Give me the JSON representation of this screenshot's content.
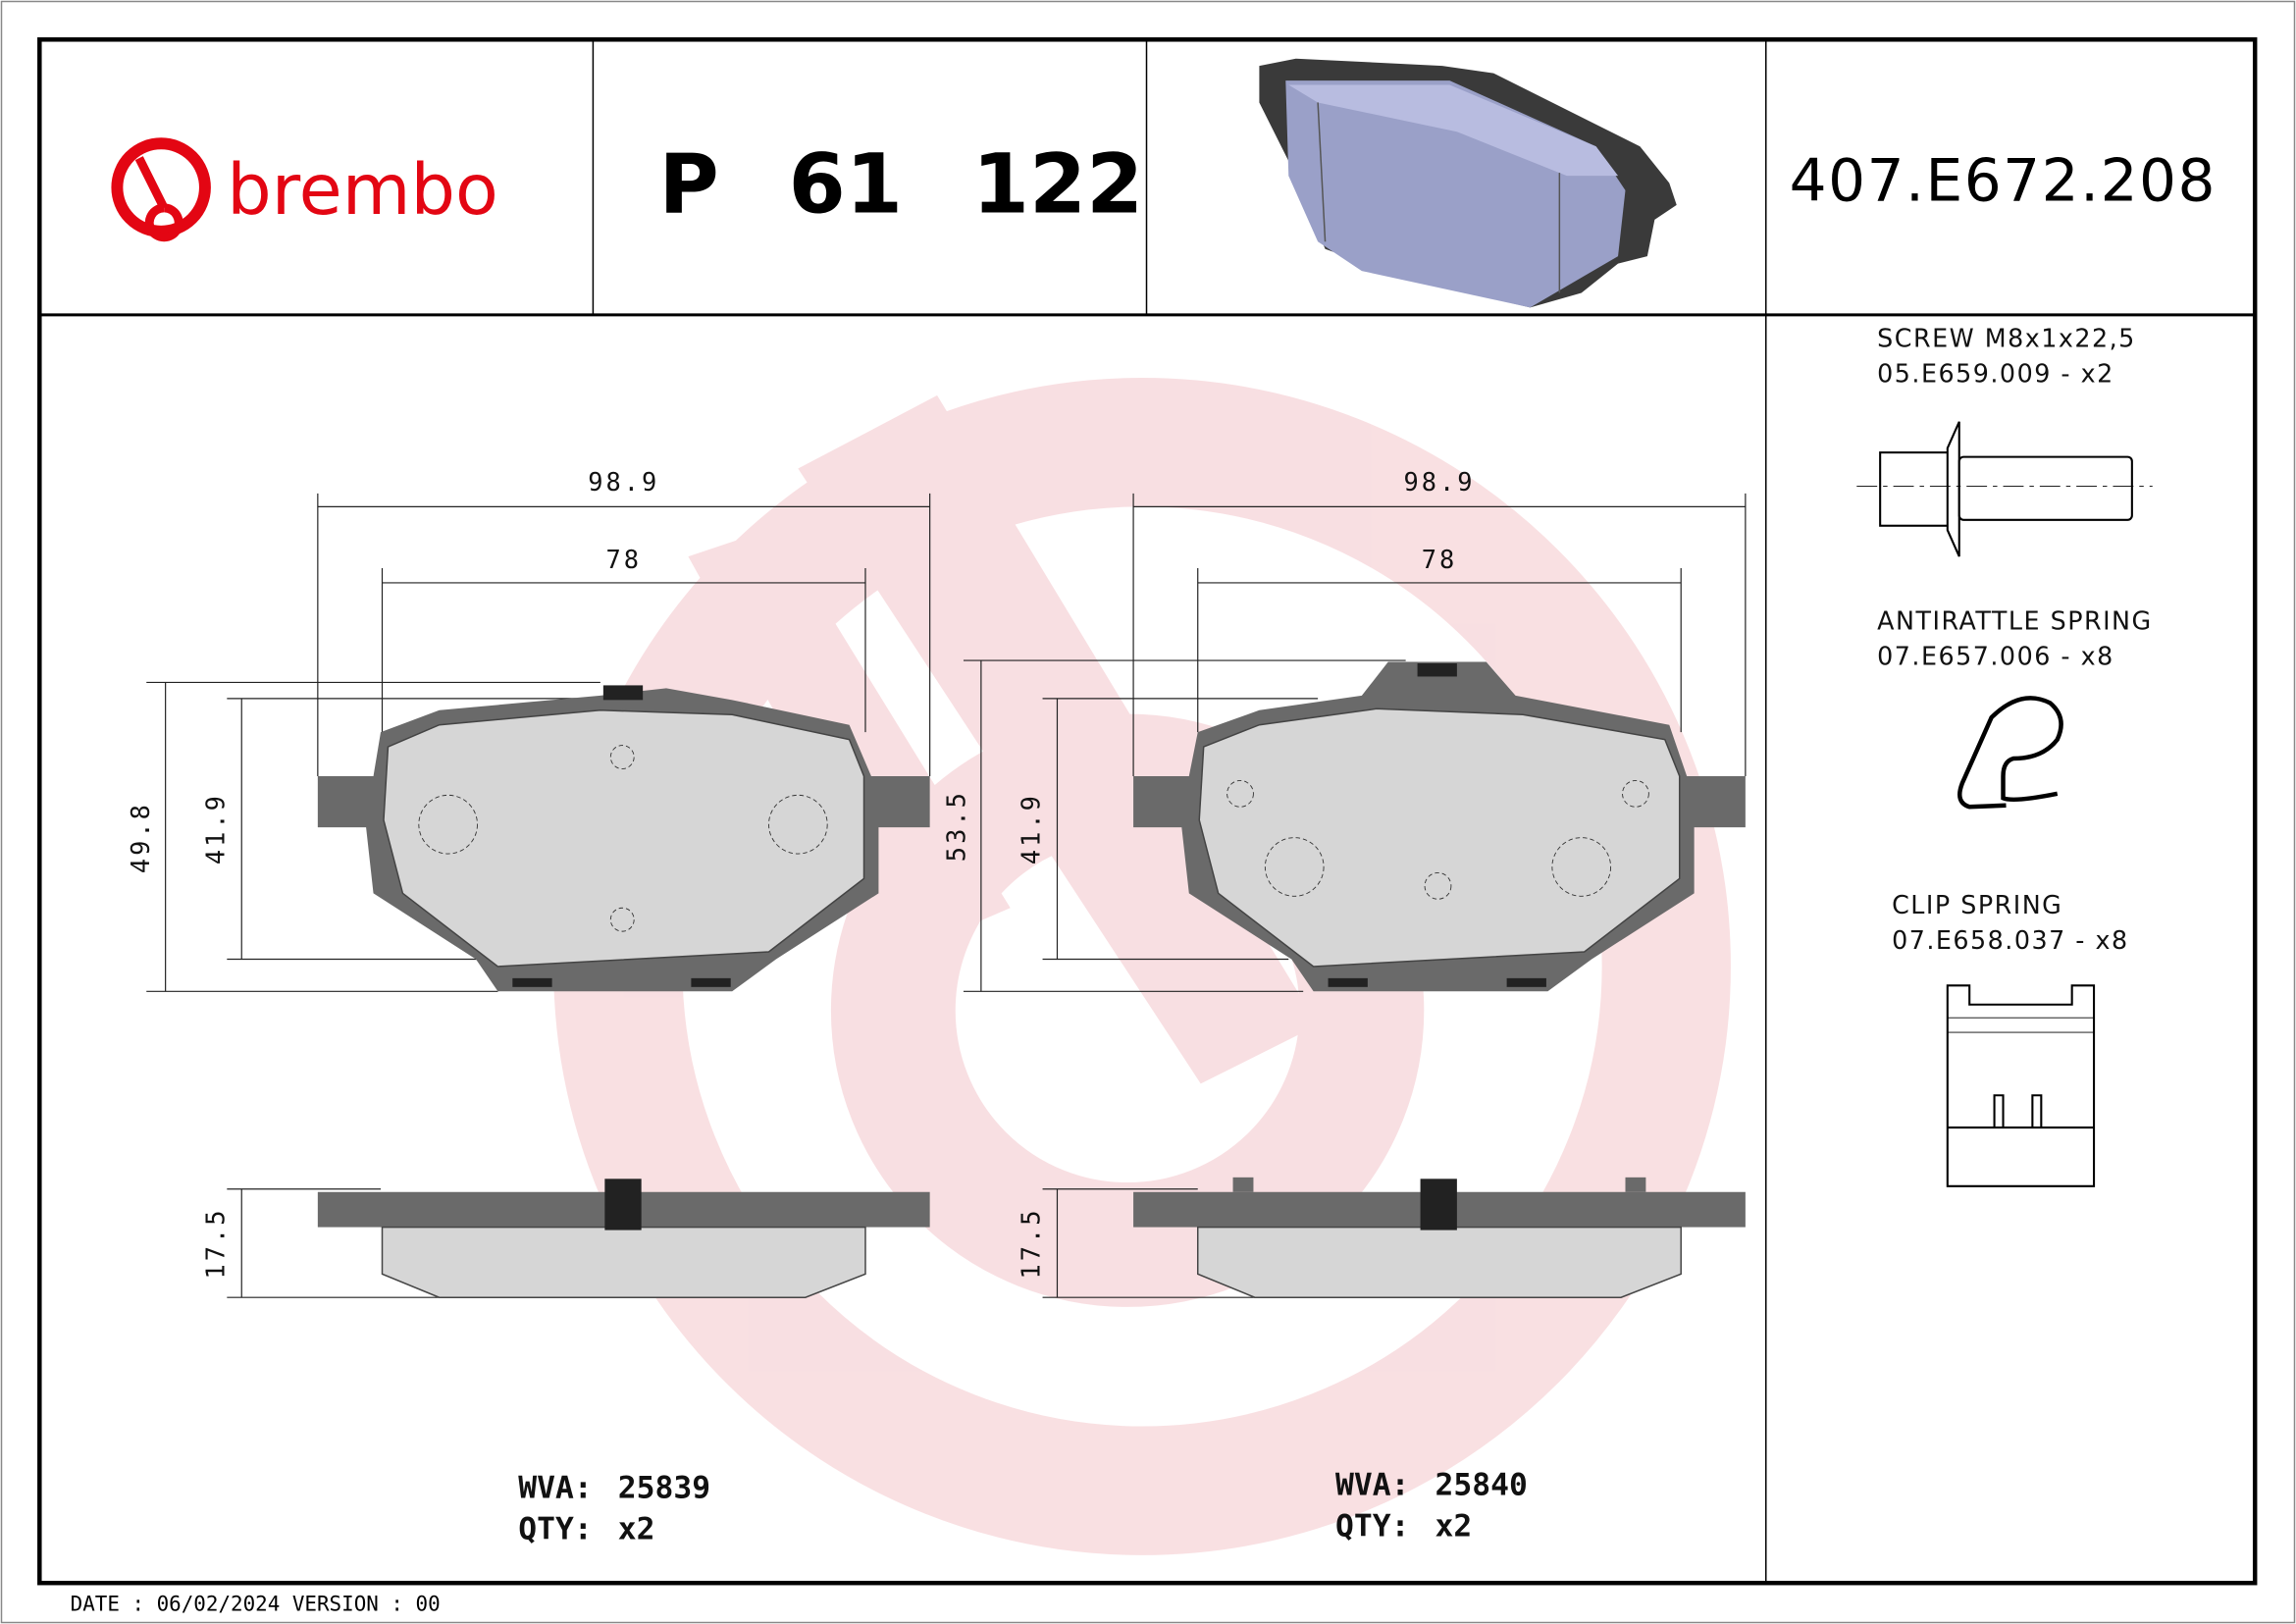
{
  "header": {
    "brand": "brembo",
    "part_number": "P 61 122",
    "reference_code": "407.E672.208",
    "brand_color": "#e30613"
  },
  "pads": [
    {
      "dims": {
        "width_total": "98.9",
        "width_inner": "78",
        "height_total": "49.8",
        "height_pad": "41.9",
        "thickness": "17.5"
      },
      "wva_label": "WVA:",
      "wva_value": "25839",
      "qty_label": "QTY:",
      "qty_value": "x2"
    },
    {
      "dims": {
        "width_total": "98.9",
        "width_inner": "78",
        "height_total": "53.5",
        "height_pad": "41.9",
        "thickness": "17.5"
      },
      "wva_label": "WVA:",
      "wva_value": "25840",
      "qty_label": "QTY:",
      "qty_value": "x2"
    }
  ],
  "accessories": [
    {
      "name": "SCREW M8x1x22,5",
      "code": "05.E659.009 - x2",
      "icon": "screw-icon"
    },
    {
      "name": "ANTIRATTLE SPRING",
      "code": "07.E657.006 - x8",
      "icon": "antirattle-spring-icon"
    },
    {
      "name": "CLIP SPRING",
      "code": "07.E658.037 - x8",
      "icon": "clip-spring-icon"
    }
  ],
  "footer": {
    "text": "DATE : 06/02/2024 VERSION : 00"
  }
}
